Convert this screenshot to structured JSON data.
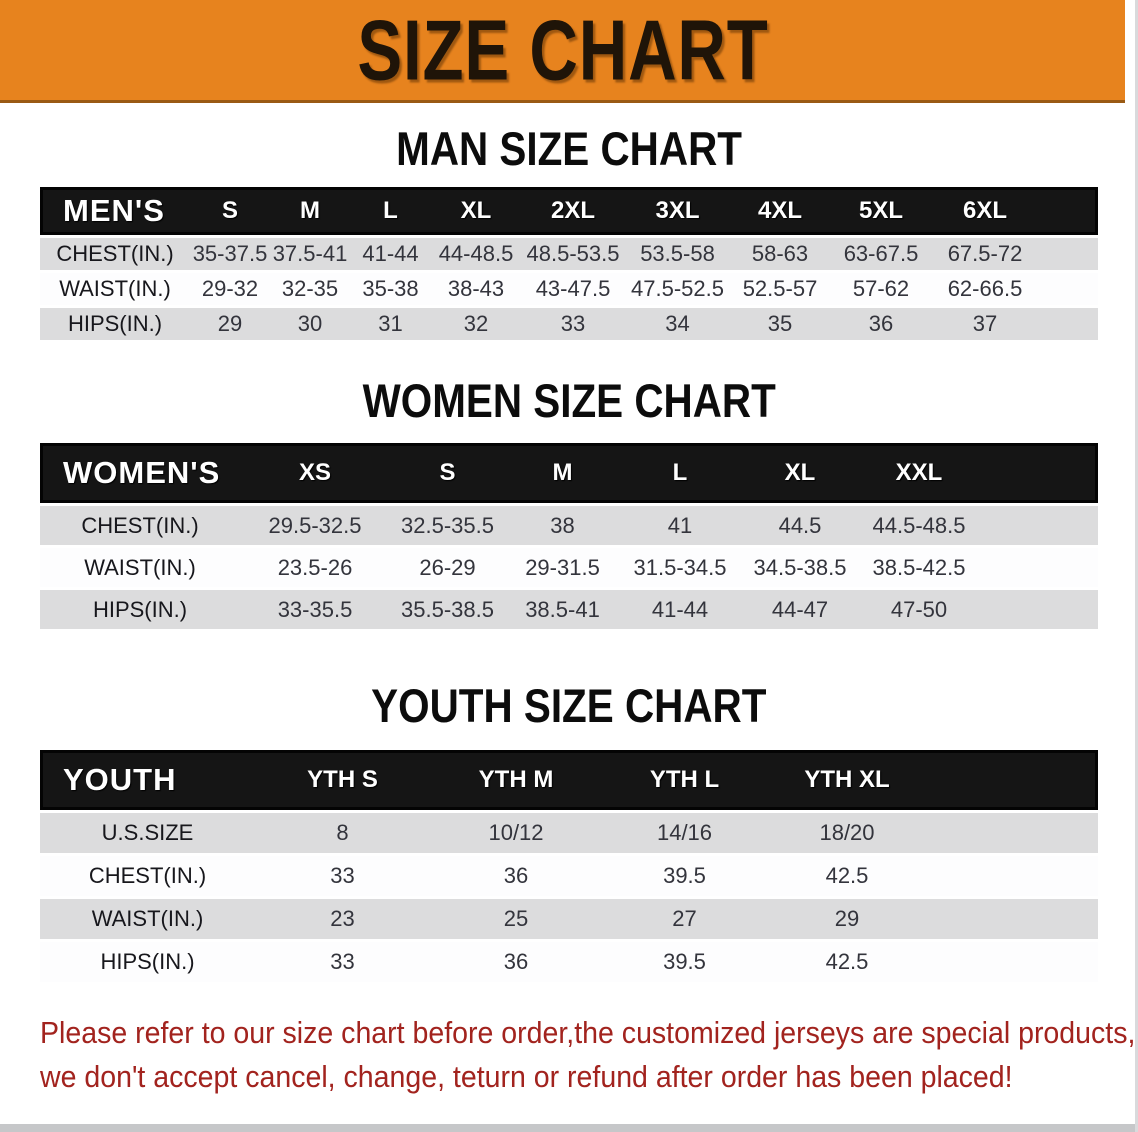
{
  "banner": {
    "title": "SIZE CHART",
    "bg_color": "#e7831e",
    "title_color": "#1f1408"
  },
  "colors": {
    "table_header_bg": "#151515",
    "row_gray": "#dcdcdd",
    "row_white": "#fdfdfe",
    "disclaimer_red": "#a2231e"
  },
  "sections": [
    {
      "heading": "MAN SIZE CHART",
      "table": {
        "label": "MEN'S",
        "columns": [
          "S",
          "M",
          "L",
          "XL",
          "2XL",
          "3XL",
          "4XL",
          "5XL",
          "6XL"
        ],
        "rows": [
          {
            "label": "CHEST(IN.)",
            "values": [
              "35-37.5",
              "37.5-41",
              "41-44",
              "44-48.5",
              "48.5-53.5",
              "53.5-58",
              "58-63",
              "63-67.5",
              "67.5-72"
            ]
          },
          {
            "label": "WAIST(IN.)",
            "values": [
              "29-32",
              "32-35",
              "35-38",
              "38-43",
              "43-47.5",
              "47.5-52.5",
              "52.5-57",
              "57-62",
              "62-66.5"
            ]
          },
          {
            "label": "HIPS(IN.)",
            "values": [
              "29",
              "30",
              "31",
              "32",
              "33",
              "34",
              "35",
              "36",
              "37"
            ]
          }
        ]
      }
    },
    {
      "heading": "WOMEN SIZE CHART",
      "table": {
        "label": "WOMEN'S",
        "columns": [
          "XS",
          "S",
          "M",
          "L",
          "XL",
          "XXL"
        ],
        "rows": [
          {
            "label": "CHEST(IN.)",
            "values": [
              "29.5-32.5",
              "32.5-35.5",
              "38",
              "41",
              "44.5",
              "44.5-48.5"
            ]
          },
          {
            "label": "WAIST(IN.)",
            "values": [
              "23.5-26",
              "26-29",
              "29-31.5",
              "31.5-34.5",
              "34.5-38.5",
              "38.5-42.5"
            ]
          },
          {
            "label": "HIPS(IN.)",
            "values": [
              "33-35.5",
              "35.5-38.5",
              "38.5-41",
              "41-44",
              "44-47",
              "47-50"
            ]
          }
        ]
      }
    },
    {
      "heading": "YOUTH SIZE CHART",
      "table": {
        "label": "YOUTH",
        "columns": [
          "YTH S",
          "YTH M",
          "YTH L",
          "YTH XL"
        ],
        "rows": [
          {
            "label": "U.S.SIZE",
            "values": [
              "8",
              "10/12",
              "14/16",
              "18/20"
            ]
          },
          {
            "label": "CHEST(IN.)",
            "values": [
              "33",
              "36",
              "39.5",
              "42.5"
            ]
          },
          {
            "label": "WAIST(IN.)",
            "values": [
              "23",
              "25",
              "27",
              "29"
            ]
          },
          {
            "label": "HIPS(IN.)",
            "values": [
              "33",
              "36",
              "39.5",
              "42.5"
            ]
          }
        ]
      }
    }
  ],
  "disclaimer": {
    "line1": "Please refer to our size chart before order,the customized jerseys are special products,",
    "line2": "we don't accept cancel, change, teturn or refund after order has been placed!"
  }
}
